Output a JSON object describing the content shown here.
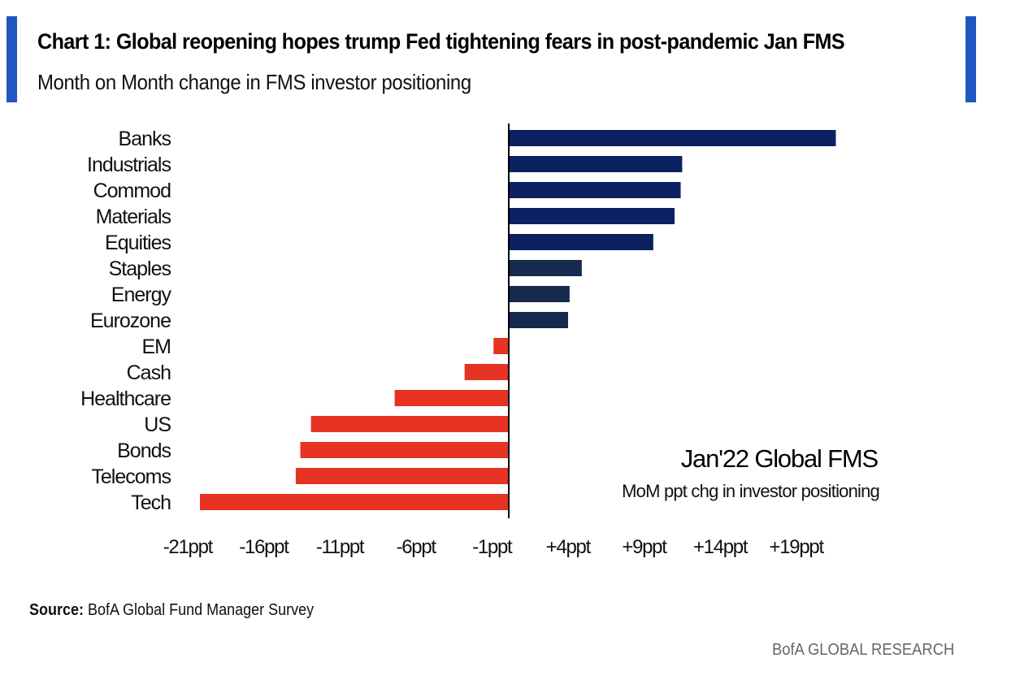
{
  "header": {
    "title": "Chart 1: Global reopening hopes trump Fed tightening fears in post-pandemic Jan FMS",
    "subtitle": "Month on Month change in FMS investor positioning"
  },
  "colors": {
    "accent": "#1f56bf",
    "positive_strong": "#0b2161",
    "positive_light": "#16294f",
    "negative": "#e73323",
    "axis": "#000000"
  },
  "chart_data": {
    "type": "bar",
    "orientation": "horizontal",
    "title": "Chart 1: Global reopening hopes trump Fed tightening fears in post-pandemic Jan FMS",
    "subtitle": "Month on Month change in FMS investor positioning",
    "categories": [
      "Banks",
      "Industrials",
      "Commod",
      "Materials",
      "Equities",
      "Staples",
      "Energy",
      "Eurozone",
      "EM",
      "Cash",
      "Healthcare",
      "US",
      "Bonds",
      "Telecoms",
      "Tech"
    ],
    "values": [
      21.5,
      11.4,
      11.3,
      10.9,
      9.5,
      4.8,
      4.0,
      3.9,
      -1.0,
      -2.9,
      -7.5,
      -13.0,
      -13.7,
      -14.0,
      -20.3
    ],
    "bar_groups": [
      "strong",
      "strong",
      "strong",
      "strong",
      "strong",
      "light",
      "light",
      "light",
      "neg",
      "neg",
      "neg",
      "neg",
      "neg",
      "neg",
      "neg"
    ],
    "xlabel": "",
    "ylabel": "",
    "unit": "ppt",
    "xlim": [
      -21,
      22
    ],
    "xticks": [
      -21,
      -16,
      -11,
      -6,
      -1,
      4,
      9,
      14,
      19
    ],
    "xtick_labels": [
      "-21ppt",
      "-16ppt",
      "-11ppt",
      "-6ppt",
      "-1ppt",
      "+4ppt",
      "+9ppt",
      "+14ppt",
      "+19ppt"
    ],
    "grid": false,
    "annotation": {
      "title": "Jan'22 Global FMS",
      "subtitle": "MoM ppt chg in investor positioning",
      "placement": "bottom-right"
    }
  },
  "source": {
    "label": "Source:",
    "text": "BofA Global Fund Manager Survey"
  },
  "footer": "BofA GLOBAL RESEARCH"
}
